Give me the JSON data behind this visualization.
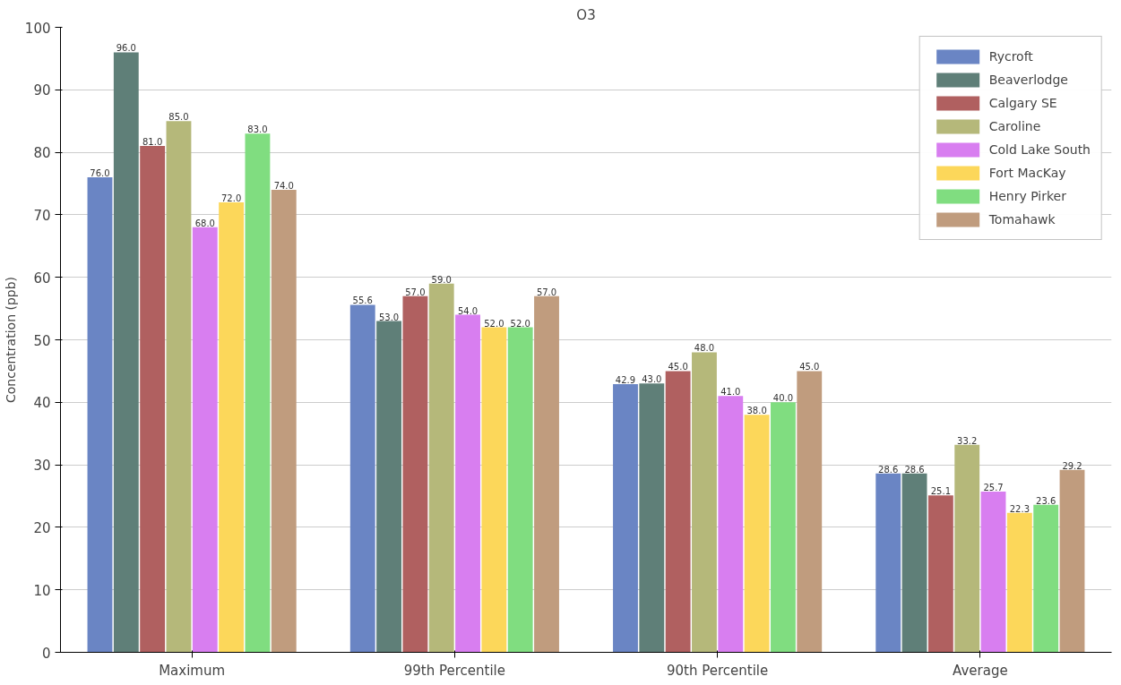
{
  "chart_data": {
    "type": "bar",
    "title": "O3",
    "ylabel": "Concentration (ppb)",
    "categories": [
      "Maximum",
      "99th Percentile",
      "90th Percentile",
      "Average"
    ],
    "ylim": [
      0,
      100
    ],
    "yticks": [
      0,
      10,
      20,
      30,
      40,
      50,
      60,
      70,
      80,
      90,
      100
    ],
    "grid": "y",
    "legend": "top right",
    "series": [
      {
        "name": "Rycroft",
        "color": "#6a85c4",
        "values": [
          76.0,
          55.6,
          42.9,
          28.6
        ],
        "value_labels": [
          "76.0",
          "55.6",
          "42.9",
          "28.6"
        ]
      },
      {
        "name": "Beaverlodge",
        "color": "#5f7f78",
        "values": [
          96.0,
          53.0,
          43.0,
          28.6
        ],
        "value_labels": [
          "96.0",
          "53.0",
          "43.0",
          "28.6"
        ]
      },
      {
        "name": "Calgary SE",
        "color": "#b06060",
        "values": [
          81.0,
          57.0,
          45.0,
          25.1
        ],
        "value_labels": [
          "81.0",
          "57.0",
          "45.0",
          "25.1"
        ]
      },
      {
        "name": "Caroline",
        "color": "#b5b87a",
        "values": [
          85.0,
          59.0,
          48.0,
          33.2
        ],
        "value_labels": [
          "85.0",
          "59.0",
          "48.0",
          "33.2"
        ]
      },
      {
        "name": "Cold Lake South",
        "color": "#d87ef0",
        "values": [
          68.0,
          54.0,
          41.0,
          25.7
        ],
        "value_labels": [
          "68.0",
          "54.0",
          "41.0",
          "25.7"
        ]
      },
      {
        "name": "Fort MacKay",
        "color": "#fcd75a",
        "values": [
          72.0,
          52.0,
          38.0,
          22.3
        ],
        "value_labels": [
          "72.0",
          "52.0",
          "38.0",
          "22.3"
        ]
      },
      {
        "name": "Henry Pirker",
        "color": "#80dd80",
        "values": [
          83.0,
          52.0,
          40.0,
          23.6
        ],
        "value_labels": [
          "83.0",
          "52.0",
          "40.0",
          "23.6"
        ]
      },
      {
        "name": "Tomahawk",
        "color": "#c09c7e",
        "values": [
          74.0,
          57.0,
          45.0,
          29.2
        ],
        "value_labels": [
          "74.0",
          "57.0",
          "45.0",
          "29.2"
        ]
      }
    ]
  }
}
